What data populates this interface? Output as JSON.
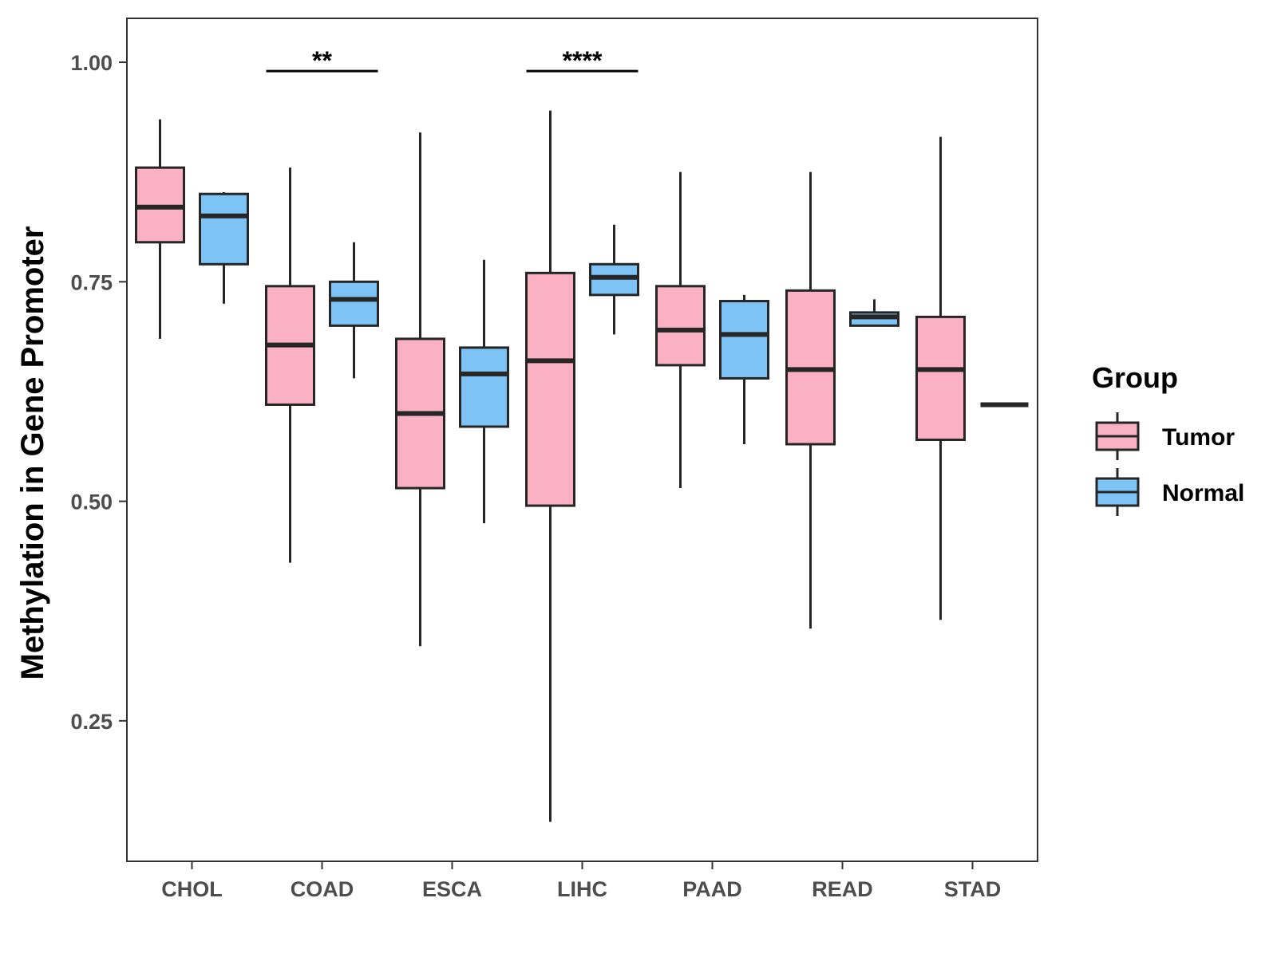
{
  "chart_data": {
    "type": "boxplot",
    "title": "",
    "xlabel": "",
    "ylabel": "Methylation in Gene Promoter",
    "ylim": [
      0.09,
      1.05
    ],
    "yticks": [
      0.25,
      0.5,
      0.75,
      1.0
    ],
    "ytick_labels": [
      "0.25",
      "0.50",
      "0.75",
      "1.00"
    ],
    "categories": [
      "CHOL",
      "COAD",
      "ESCA",
      "LIHC",
      "PAAD",
      "READ",
      "STAD"
    ],
    "legend": {
      "title": "Group",
      "position": "right",
      "entries": [
        {
          "name": "Tumor",
          "color": "#f9b1c3"
        },
        {
          "name": "Normal",
          "color": "#7dc3f6"
        }
      ]
    },
    "series": [
      {
        "name": "Tumor",
        "color": "#f9b1c3",
        "boxes": [
          {
            "category": "CHOL",
            "min": 0.685,
            "q1": 0.795,
            "median": 0.835,
            "q3": 0.88,
            "max": 0.935
          },
          {
            "category": "COAD",
            "min": 0.43,
            "q1": 0.61,
            "median": 0.678,
            "q3": 0.745,
            "max": 0.88
          },
          {
            "category": "ESCA",
            "min": 0.335,
            "q1": 0.515,
            "median": 0.6,
            "q3": 0.685,
            "max": 0.92
          },
          {
            "category": "LIHC",
            "min": 0.135,
            "q1": 0.495,
            "median": 0.66,
            "q3": 0.76,
            "max": 0.945
          },
          {
            "category": "PAAD",
            "min": 0.515,
            "q1": 0.655,
            "median": 0.695,
            "q3": 0.745,
            "max": 0.875
          },
          {
            "category": "READ",
            "min": 0.355,
            "q1": 0.565,
            "median": 0.65,
            "q3": 0.74,
            "max": 0.875
          },
          {
            "category": "STAD",
            "min": 0.365,
            "q1": 0.57,
            "median": 0.65,
            "q3": 0.71,
            "max": 0.915
          }
        ]
      },
      {
        "name": "Normal",
        "color": "#7dc3f6",
        "boxes": [
          {
            "category": "CHOL",
            "min": 0.725,
            "q1": 0.77,
            "median": 0.825,
            "q3": 0.85,
            "max": 0.852
          },
          {
            "category": "COAD",
            "min": 0.64,
            "q1": 0.7,
            "median": 0.73,
            "q3": 0.75,
            "max": 0.795
          },
          {
            "category": "ESCA",
            "min": 0.475,
            "q1": 0.585,
            "median": 0.645,
            "q3": 0.675,
            "max": 0.775
          },
          {
            "category": "LIHC",
            "min": 0.69,
            "q1": 0.735,
            "median": 0.755,
            "q3": 0.77,
            "max": 0.815
          },
          {
            "category": "PAAD",
            "min": 0.565,
            "q1": 0.64,
            "median": 0.69,
            "q3": 0.728,
            "max": 0.735
          },
          {
            "category": "READ",
            "min": 0.7,
            "q1": 0.7,
            "median": 0.71,
            "q3": 0.715,
            "max": 0.73
          },
          {
            "category": "STAD",
            "min": 0.61,
            "q1": 0.61,
            "median": 0.61,
            "q3": 0.61,
            "max": 0.61
          }
        ]
      }
    ],
    "annotations": [
      {
        "category": "COAD",
        "label": "**",
        "y": 0.99
      },
      {
        "category": "LIHC",
        "label": "****",
        "y": 0.99
      }
    ]
  }
}
